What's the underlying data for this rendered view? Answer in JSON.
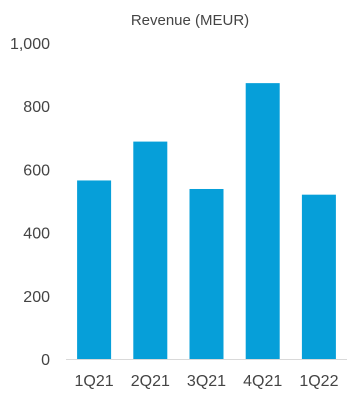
{
  "chart_data": {
    "type": "bar",
    "title": "Revenue (MEUR)",
    "categories": [
      "1Q21",
      "2Q21",
      "3Q21",
      "4Q21",
      "1Q22"
    ],
    "values": [
      565,
      688,
      538,
      873,
      520
    ],
    "ylim": [
      0,
      1000
    ],
    "y_ticks": [
      "0",
      "200",
      "400",
      "600",
      "800",
      "1,000"
    ],
    "y_tick_values": [
      0,
      200,
      400,
      600,
      800,
      1000
    ],
    "xlabel": "",
    "ylabel": "",
    "grid": false,
    "legend": "none",
    "bar_color": "#069fd9"
  }
}
